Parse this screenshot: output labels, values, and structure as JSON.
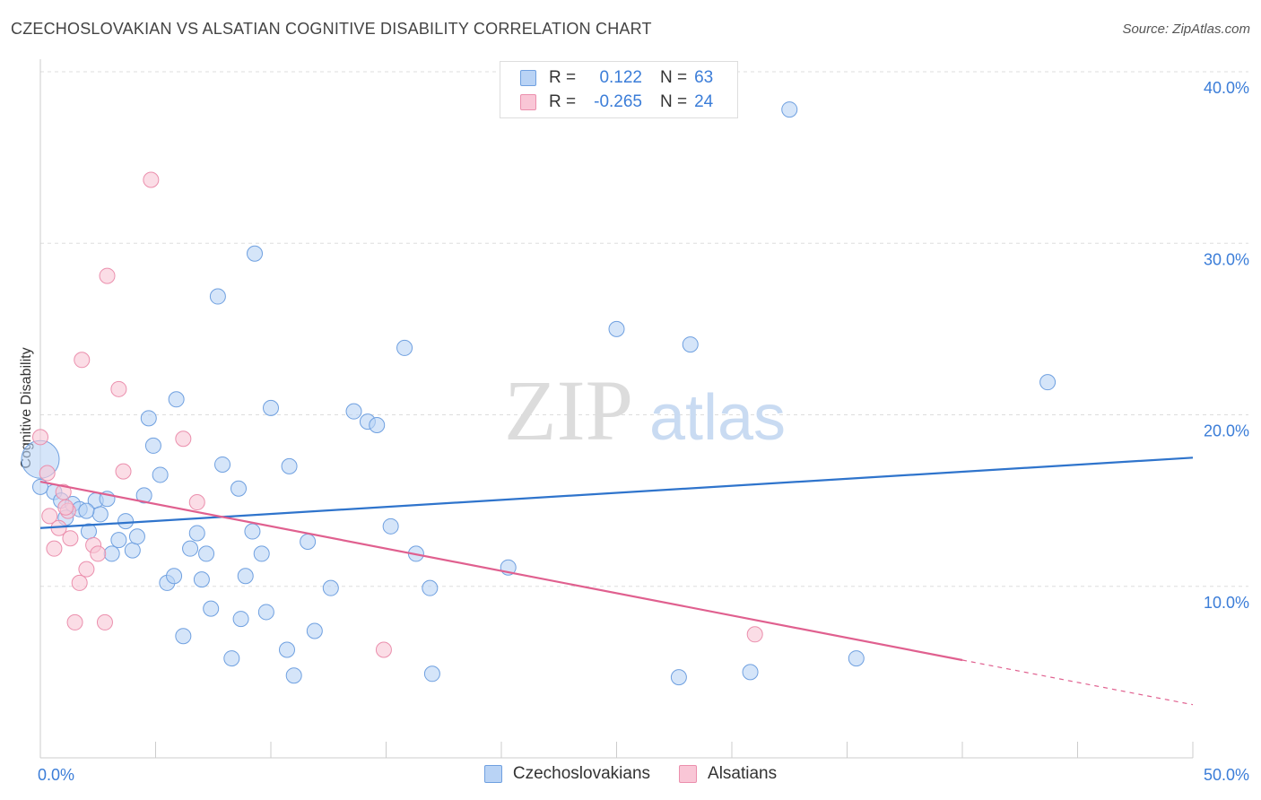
{
  "title": "CZECHOSLOVAKIAN VS ALSATIAN COGNITIVE DISABILITY CORRELATION CHART",
  "source": "Source: ZipAtlas.com",
  "watermark": {
    "zip": "ZIP",
    "atlas": "atlas"
  },
  "legend": {
    "rows": [
      {
        "r_label": "R =",
        "r_value": "0.122",
        "n_label": "N =",
        "n_value": "63",
        "fill": "#b9d3f5",
        "stroke": "#6fa0e0"
      },
      {
        "r_label": "R =",
        "r_value": "-0.265",
        "n_label": "N =",
        "n_value": "24",
        "fill": "#f9c6d6",
        "stroke": "#eb8fad"
      }
    ]
  },
  "chart_data": {
    "type": "scatter",
    "title": "CZECHOSLOVAKIAN VS ALSATIAN COGNITIVE DISABILITY CORRELATION CHART",
    "xlabel": "",
    "ylabel": "Cognitive Disability",
    "xlim": [
      0,
      50
    ],
    "ylim": [
      0,
      40
    ],
    "x_ticks": [
      {
        "value": 0,
        "label": "0.0%"
      },
      {
        "value": 50,
        "label": "50.0%"
      }
    ],
    "y_ticks": [
      {
        "value": 10,
        "label": "10.0%"
      },
      {
        "value": 20,
        "label": "20.0%"
      },
      {
        "value": 30,
        "label": "30.0%"
      },
      {
        "value": 40,
        "label": "40.0%"
      }
    ],
    "grid": "horizontal dashed",
    "legend_position": "bottom-center",
    "series": [
      {
        "name": "Czechoslovakians",
        "color": "#6fa0e0",
        "fill": "#b9d3f5",
        "trend": {
          "x": [
            0,
            50
          ],
          "y": [
            13.4,
            17.5
          ],
          "color": "#2f74cc"
        },
        "points": [
          [
            0.0,
            17.4
          ],
          [
            0.6,
            15.5
          ],
          [
            0.9,
            15.0
          ],
          [
            1.1,
            14.0
          ],
          [
            1.4,
            14.8
          ],
          [
            1.7,
            14.5
          ],
          [
            2.1,
            13.2
          ],
          [
            2.4,
            15.0
          ],
          [
            2.6,
            14.2
          ],
          [
            2.9,
            15.1
          ],
          [
            3.1,
            11.9
          ],
          [
            3.4,
            12.7
          ],
          [
            3.7,
            13.8
          ],
          [
            4.0,
            12.1
          ],
          [
            4.2,
            12.9
          ],
          [
            4.5,
            15.3
          ],
          [
            4.7,
            19.8
          ],
          [
            4.9,
            18.2
          ],
          [
            5.2,
            16.5
          ],
          [
            5.5,
            10.2
          ],
          [
            5.8,
            10.6
          ],
          [
            5.9,
            20.9
          ],
          [
            6.2,
            7.1
          ],
          [
            6.5,
            12.2
          ],
          [
            6.8,
            13.1
          ],
          [
            7.0,
            10.4
          ],
          [
            7.2,
            11.9
          ],
          [
            7.4,
            8.7
          ],
          [
            7.7,
            26.9
          ],
          [
            7.9,
            17.1
          ],
          [
            8.3,
            5.8
          ],
          [
            8.6,
            15.7
          ],
          [
            8.7,
            8.1
          ],
          [
            8.9,
            10.6
          ],
          [
            9.2,
            13.2
          ],
          [
            9.3,
            29.4
          ],
          [
            9.6,
            11.9
          ],
          [
            9.8,
            8.5
          ],
          [
            10.0,
            20.4
          ],
          [
            10.7,
            6.3
          ],
          [
            10.8,
            17.0
          ],
          [
            11.0,
            4.8
          ],
          [
            11.6,
            12.6
          ],
          [
            11.9,
            7.4
          ],
          [
            12.6,
            9.9
          ],
          [
            13.6,
            20.2
          ],
          [
            14.2,
            19.6
          ],
          [
            14.6,
            19.4
          ],
          [
            15.2,
            13.5
          ],
          [
            15.8,
            23.9
          ],
          [
            16.3,
            11.9
          ],
          [
            16.9,
            9.9
          ],
          [
            17.0,
            4.9
          ],
          [
            20.3,
            11.1
          ],
          [
            25.0,
            25.0
          ],
          [
            27.7,
            4.7
          ],
          [
            28.2,
            24.1
          ],
          [
            30.8,
            5.0
          ],
          [
            32.5,
            37.8
          ],
          [
            35.4,
            5.8
          ],
          [
            43.7,
            21.9
          ],
          [
            0.0,
            15.8
          ],
          [
            2.0,
            14.4
          ]
        ]
      },
      {
        "name": "Alsatians",
        "color": "#eb8fad",
        "fill": "#f9c6d6",
        "trend": {
          "x": [
            0,
            40
          ],
          "y": [
            16.1,
            5.7
          ],
          "dashed_extension": {
            "x": [
              40,
              50
            ],
            "y": [
              5.7,
              3.1
            ]
          },
          "color": "#e0608f"
        },
        "points": [
          [
            0.0,
            18.7
          ],
          [
            0.3,
            16.6
          ],
          [
            0.4,
            14.1
          ],
          [
            0.6,
            12.2
          ],
          [
            0.8,
            13.4
          ],
          [
            1.0,
            15.5
          ],
          [
            1.2,
            14.4
          ],
          [
            1.3,
            12.8
          ],
          [
            1.5,
            7.9
          ],
          [
            1.7,
            10.2
          ],
          [
            1.8,
            23.2
          ],
          [
            2.0,
            11.0
          ],
          [
            2.3,
            12.4
          ],
          [
            2.5,
            11.9
          ],
          [
            2.8,
            7.9
          ],
          [
            2.9,
            28.1
          ],
          [
            3.4,
            21.5
          ],
          [
            3.6,
            16.7
          ],
          [
            4.8,
            33.7
          ],
          [
            6.2,
            18.6
          ],
          [
            6.8,
            14.9
          ],
          [
            14.9,
            6.3
          ],
          [
            31.0,
            7.2
          ],
          [
            1.1,
            14.6
          ]
        ]
      }
    ]
  }
}
